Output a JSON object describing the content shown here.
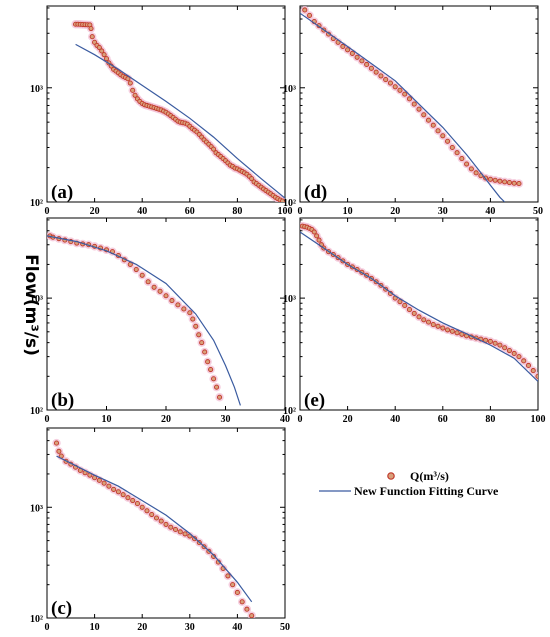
{
  "y_axis_label": "Flow(m³/s)",
  "legend": {
    "observed": "Q(m³/s)",
    "fitted": "New Function Fitting Curve"
  },
  "colors": {
    "observed_edge": "#c0392b",
    "observed_fill": "#d9a07a",
    "observed_halo": "#f2bfd4",
    "fitted_line": "#3a5ba0"
  },
  "chart_data": [
    {
      "type": "scatter",
      "panel_label": "(a)",
      "xlim": [
        0,
        100
      ],
      "xticks": [
        0,
        20,
        40,
        60,
        80,
        100
      ],
      "y_scale": "log",
      "ylim": [
        100,
        5200
      ],
      "yticks": [
        "10³",
        "10²"
      ],
      "series": [
        {
          "x": [
            12,
            13,
            14,
            15,
            16,
            17,
            18,
            18.5,
            19,
            20,
            21,
            22,
            23,
            24,
            25,
            26,
            27,
            28,
            29,
            30,
            31,
            32,
            33,
            34,
            35,
            36,
            37,
            38,
            39,
            40,
            41,
            42,
            43,
            44,
            45,
            46,
            47,
            48,
            49,
            50,
            51,
            52,
            53,
            54,
            55,
            56,
            57,
            58,
            59,
            60,
            61,
            62,
            63,
            64,
            65,
            66,
            67,
            68,
            69,
            70,
            71,
            72,
            73,
            74,
            75,
            76,
            77,
            78,
            79,
            80,
            81,
            82,
            83,
            84,
            85,
            86,
            87,
            88,
            89,
            90,
            91,
            92,
            93,
            94,
            95,
            96,
            97,
            98,
            99
          ],
          "y": [
            3600,
            3600,
            3590,
            3580,
            3570,
            3560,
            3550,
            3300,
            2800,
            2500,
            2350,
            2250,
            2100,
            1950,
            1800,
            1650,
            1550,
            1450,
            1400,
            1350,
            1300,
            1260,
            1230,
            1200,
            1100,
            950,
            860,
            800,
            760,
            730,
            710,
            700,
            690,
            680,
            670,
            660,
            650,
            640,
            625,
            610,
            590,
            570,
            550,
            530,
            510,
            500,
            495,
            490,
            480,
            460,
            440,
            425,
            410,
            390,
            370,
            350,
            335,
            320,
            305,
            290,
            270,
            260,
            250,
            240,
            230,
            220,
            210,
            205,
            198,
            195,
            190,
            185,
            180,
            175,
            168,
            160,
            150,
            145,
            140,
            135,
            130,
            126,
            122,
            118,
            114,
            110,
            107,
            104,
            102
          ]
        }
      ],
      "fit": {
        "x": [
          12,
          20,
          30,
          40,
          50,
          60,
          70,
          80,
          90,
          100
        ],
        "y": [
          2400,
          1950,
          1450,
          1050,
          760,
          540,
          370,
          240,
          160,
          108
        ]
      }
    },
    {
      "type": "scatter",
      "panel_label": "(b)",
      "xlim": [
        0,
        40
      ],
      "xticks": [
        0,
        10,
        20,
        30,
        40
      ],
      "y_scale": "log",
      "ylim": [
        100,
        5200
      ],
      "yticks": [
        "10³",
        "10²"
      ],
      "series": [
        {
          "x": [
            0.5,
            1,
            2,
            3,
            4,
            5,
            6,
            7,
            8,
            9,
            10,
            11,
            12,
            13,
            14,
            15,
            16,
            17,
            18,
            19,
            20,
            21,
            22,
            23,
            24,
            24.5,
            25,
            25.5,
            26,
            26.5,
            27,
            27.5,
            28,
            28.5,
            29
          ],
          "y": [
            3600,
            3500,
            3400,
            3300,
            3200,
            3100,
            3050,
            3000,
            2900,
            2800,
            2700,
            2600,
            2400,
            2200,
            2000,
            1800,
            1600,
            1400,
            1250,
            1150,
            1050,
            950,
            870,
            800,
            740,
            650,
            560,
            470,
            400,
            330,
            270,
            230,
            190,
            160,
            130
          ]
        }
      ],
      "fit": {
        "x": [
          0,
          5,
          10,
          15,
          20,
          25,
          28,
          30,
          31.5,
          32.5
        ],
        "y": [
          3600,
          3200,
          2650,
          2000,
          1350,
          720,
          420,
          250,
          160,
          110
        ]
      }
    },
    {
      "type": "scatter",
      "panel_label": "(c)",
      "xlim": [
        0,
        50
      ],
      "xticks": [
        0,
        10,
        20,
        30,
        40,
        50
      ],
      "y_scale": "log",
      "ylim": [
        100,
        5200
      ],
      "yticks": [
        "10³",
        "10²"
      ],
      "series": [
        {
          "x": [
            2,
            2.5,
            3,
            4,
            5,
            6,
            7,
            8,
            9,
            10,
            11,
            12,
            13,
            14,
            15,
            16,
            17,
            18,
            19,
            20,
            21,
            22,
            23,
            24,
            25,
            26,
            27,
            28,
            29,
            30,
            31,
            32,
            33,
            34,
            35,
            36,
            37,
            38,
            39,
            40,
            41,
            42,
            43
          ],
          "y": [
            3800,
            3200,
            2900,
            2600,
            2450,
            2300,
            2150,
            2050,
            1950,
            1850,
            1750,
            1650,
            1550,
            1450,
            1380,
            1300,
            1220,
            1150,
            1080,
            1000,
            930,
            860,
            800,
            750,
            700,
            660,
            630,
            600,
            575,
            550,
            520,
            480,
            440,
            400,
            360,
            320,
            280,
            240,
            200,
            170,
            140,
            120,
            105
          ]
        }
      ],
      "fit": {
        "x": [
          2,
          5,
          10,
          15,
          20,
          25,
          30,
          35,
          40,
          43
        ],
        "y": [
          2900,
          2500,
          1950,
          1550,
          1150,
          850,
          580,
          370,
          210,
          140
        ]
      }
    },
    {
      "type": "scatter",
      "panel_label": "(d)",
      "xlim": [
        0,
        50
      ],
      "xticks": [
        0,
        10,
        20,
        30,
        40,
        50
      ],
      "y_scale": "log",
      "ylim": [
        100,
        5200
      ],
      "yticks": [
        "10³",
        "10²"
      ],
      "series": [
        {
          "x": [
            1,
            2,
            3,
            4,
            5,
            6,
            7,
            8,
            9,
            10,
            11,
            12,
            13,
            14,
            15,
            16,
            17,
            18,
            19,
            20,
            21,
            22,
            23,
            24,
            25,
            26,
            27,
            28,
            29,
            30,
            31,
            32,
            33,
            34,
            35,
            36,
            37,
            38,
            39,
            40,
            41,
            42,
            43,
            44,
            45,
            46
          ],
          "y": [
            4800,
            4300,
            3800,
            3500,
            3200,
            2950,
            2700,
            2500,
            2300,
            2150,
            2000,
            1850,
            1720,
            1600,
            1480,
            1370,
            1270,
            1180,
            1100,
            1020,
            950,
            880,
            800,
            720,
            650,
            580,
            520,
            470,
            420,
            380,
            340,
            300,
            270,
            240,
            215,
            195,
            180,
            170,
            162,
            158,
            155,
            152,
            150,
            148,
            146,
            145
          ]
        }
      ],
      "fit": {
        "x": [
          0,
          10,
          20,
          30,
          35,
          38,
          40,
          42,
          43
        ],
        "y": [
          4500,
          2300,
          1150,
          450,
          260,
          180,
          140,
          110,
          100
        ]
      }
    },
    {
      "type": "scatter",
      "panel_label": "(e)",
      "xlim": [
        0,
        100
      ],
      "xticks": [
        0,
        20,
        40,
        60,
        80,
        100
      ],
      "y_scale": "log",
      "ylim": [
        100,
        5200
      ],
      "yticks": [
        "10³",
        "10²"
      ],
      "series": [
        {
          "x": [
            1,
            2,
            3,
            4,
            5,
            6,
            7,
            8,
            9,
            10,
            12,
            14,
            16,
            18,
            20,
            22,
            24,
            26,
            28,
            30,
            32,
            34,
            36,
            38,
            40,
            42,
            44,
            46,
            48,
            50,
            52,
            54,
            56,
            58,
            60,
            62,
            64,
            66,
            68,
            70,
            72,
            74,
            76,
            78,
            80,
            82,
            84,
            86,
            88,
            90,
            92,
            94,
            96,
            98,
            100
          ],
          "y": [
            4400,
            4350,
            4300,
            4200,
            4100,
            3900,
            3600,
            3300,
            3000,
            2800,
            2600,
            2450,
            2300,
            2150,
            2000,
            1900,
            1800,
            1700,
            1600,
            1500,
            1400,
            1300,
            1200,
            1100,
            1000,
            930,
            860,
            790,
            730,
            680,
            640,
            610,
            580,
            560,
            540,
            520,
            505,
            490,
            475,
            460,
            450,
            440,
            430,
            420,
            410,
            395,
            380,
            360,
            340,
            320,
            300,
            275,
            250,
            225,
            200
          ]
        }
      ],
      "fit": {
        "x": [
          0,
          10,
          20,
          30,
          40,
          50,
          60,
          70,
          80,
          90,
          100
        ],
        "y": [
          3900,
          2800,
          2000,
          1500,
          1050,
          780,
          600,
          480,
          380,
          290,
          180
        ]
      }
    }
  ]
}
